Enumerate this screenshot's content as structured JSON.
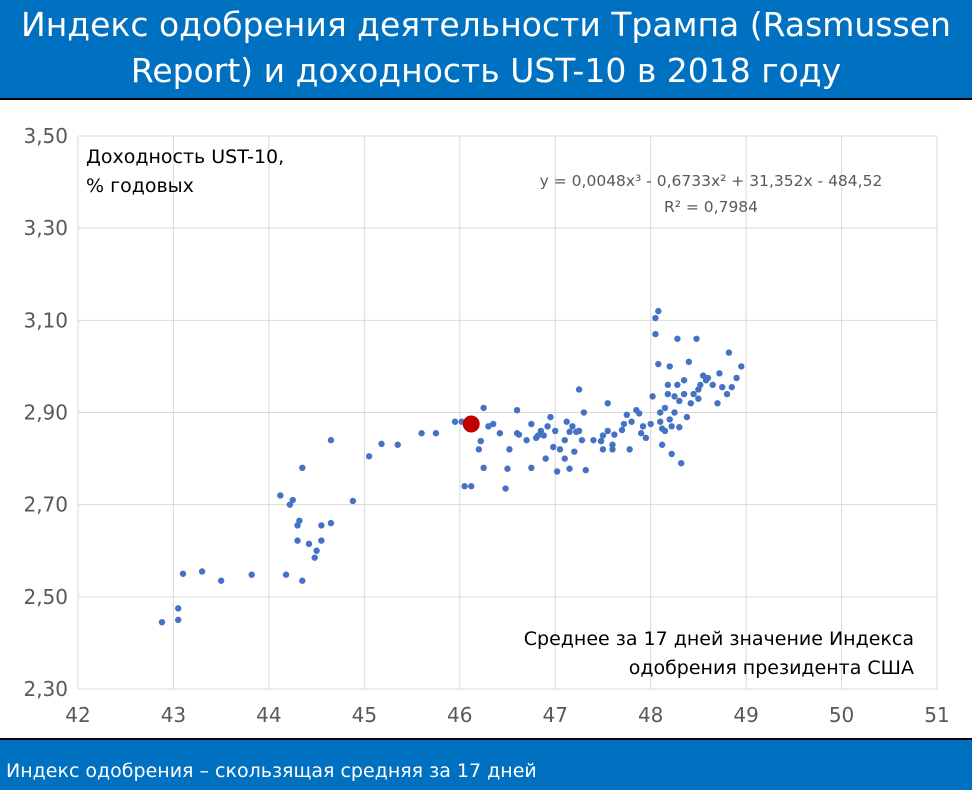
{
  "title_lines": [
    "Индекс одобрения деятельности Трампа (Rasmussen",
    "Report) и доходность UST-10 в 2018 году"
  ],
  "footer": "Индекс одобрения – скользящая средняя за 17 дней",
  "colors": {
    "background_band": "#0070c0",
    "points": "#4472c4",
    "highlight": "#c00000",
    "trend": "#c00000",
    "grid": "#d9d9d9"
  },
  "chart_data": {
    "type": "scatter",
    "ylabel": "Доходность UST-10, % годовых",
    "xlabel": "Среднее за 17 дней значение Индекса одобрения президента США",
    "ylabel_lines": [
      "Доходность UST-10,",
      "% годовых"
    ],
    "xlabel_lines": [
      "Среднее за 17 дней значение Индекса",
      "одобрения президента США"
    ],
    "xlim": [
      42,
      51
    ],
    "ylim": [
      2.3,
      3.5
    ],
    "x_ticks": [
      "42",
      "43",
      "44",
      "45",
      "46",
      "47",
      "48",
      "49",
      "50",
      "51"
    ],
    "y_ticks": [
      "2,30",
      "2,50",
      "2,70",
      "2,90",
      "3,10",
      "3,30",
      "3,50"
    ],
    "grid": true,
    "trendline": {
      "type": "polynomial",
      "coefficients": [
        0.0048,
        -0.6733,
        31.352,
        -484.52
      ],
      "equation": "y = 0,0048x³ - 0,6733x² + 31,352x - 484,52",
      "r2": "R² = 0,7984"
    },
    "highlight_point": {
      "x": 46.12,
      "y": 2.875
    },
    "points": [
      [
        42.88,
        2.445
      ],
      [
        43.05,
        2.475
      ],
      [
        43.05,
        2.45
      ],
      [
        43.1,
        2.55
      ],
      [
        43.3,
        2.555
      ],
      [
        43.5,
        2.535
      ],
      [
        43.82,
        2.548
      ],
      [
        44.12,
        2.72
      ],
      [
        44.18,
        2.548
      ],
      [
        44.22,
        2.7
      ],
      [
        44.25,
        2.71
      ],
      [
        44.3,
        2.655
      ],
      [
        44.3,
        2.622
      ],
      [
        44.32,
        2.665
      ],
      [
        44.35,
        2.78
      ],
      [
        44.35,
        2.535
      ],
      [
        44.42,
        2.615
      ],
      [
        44.48,
        2.585
      ],
      [
        44.5,
        2.6
      ],
      [
        44.55,
        2.622
      ],
      [
        44.55,
        2.655
      ],
      [
        44.65,
        2.66
      ],
      [
        44.65,
        2.84
      ],
      [
        44.88,
        2.708
      ],
      [
        45.05,
        2.805
      ],
      [
        45.18,
        2.832
      ],
      [
        45.35,
        2.83
      ],
      [
        45.6,
        2.855
      ],
      [
        45.75,
        2.855
      ],
      [
        45.95,
        2.88
      ],
      [
        46.02,
        2.88
      ],
      [
        46.05,
        2.74
      ],
      [
        46.12,
        2.74
      ],
      [
        46.2,
        2.82
      ],
      [
        46.22,
        2.838
      ],
      [
        46.25,
        2.91
      ],
      [
        46.25,
        2.78
      ],
      [
        46.3,
        2.87
      ],
      [
        46.35,
        2.875
      ],
      [
        46.42,
        2.855
      ],
      [
        46.48,
        2.735
      ],
      [
        46.5,
        2.778
      ],
      [
        46.52,
        2.82
      ],
      [
        46.6,
        2.905
      ],
      [
        46.6,
        2.855
      ],
      [
        46.62,
        2.852
      ],
      [
        46.7,
        2.84
      ],
      [
        46.75,
        2.875
      ],
      [
        46.75,
        2.78
      ],
      [
        46.8,
        2.845
      ],
      [
        46.82,
        2.85
      ],
      [
        46.85,
        2.86
      ],
      [
        46.88,
        2.85
      ],
      [
        46.9,
        2.8
      ],
      [
        46.92,
        2.87
      ],
      [
        46.95,
        2.89
      ],
      [
        46.98,
        2.825
      ],
      [
        47.0,
        2.86
      ],
      [
        47.02,
        2.772
      ],
      [
        47.05,
        2.82
      ],
      [
        47.1,
        2.8
      ],
      [
        47.1,
        2.84
      ],
      [
        47.12,
        2.88
      ],
      [
        47.15,
        2.858
      ],
      [
        47.15,
        2.778
      ],
      [
        47.18,
        2.87
      ],
      [
        47.2,
        2.815
      ],
      [
        47.22,
        2.858
      ],
      [
        47.25,
        2.86
      ],
      [
        47.25,
        2.95
      ],
      [
        47.28,
        2.84
      ],
      [
        47.3,
        2.9
      ],
      [
        47.32,
        2.775
      ],
      [
        47.4,
        2.84
      ],
      [
        47.48,
        2.838
      ],
      [
        47.5,
        2.85
      ],
      [
        47.5,
        2.82
      ],
      [
        47.55,
        2.86
      ],
      [
        47.55,
        2.92
      ],
      [
        47.6,
        2.83
      ],
      [
        47.6,
        2.82
      ],
      [
        47.62,
        2.852
      ],
      [
        47.7,
        2.862
      ],
      [
        47.72,
        2.875
      ],
      [
        47.75,
        2.895
      ],
      [
        47.78,
        2.82
      ],
      [
        47.8,
        2.88
      ],
      [
        47.85,
        2.905
      ],
      [
        47.88,
        2.898
      ],
      [
        47.9,
        2.855
      ],
      [
        47.92,
        2.87
      ],
      [
        47.95,
        2.845
      ],
      [
        48.0,
        2.875
      ],
      [
        48.02,
        2.935
      ],
      [
        48.05,
        3.105
      ],
      [
        48.08,
        3.12
      ],
      [
        48.05,
        3.07
      ],
      [
        48.08,
        3.005
      ],
      [
        48.1,
        2.9
      ],
      [
        48.1,
        2.88
      ],
      [
        48.12,
        2.865
      ],
      [
        48.12,
        2.83
      ],
      [
        48.15,
        2.91
      ],
      [
        48.15,
        2.86
      ],
      [
        48.18,
        2.96
      ],
      [
        48.18,
        2.94
      ],
      [
        48.2,
        3.0
      ],
      [
        48.2,
        2.885
      ],
      [
        48.22,
        2.81
      ],
      [
        48.22,
        2.87
      ],
      [
        48.25,
        2.935
      ],
      [
        48.25,
        2.9
      ],
      [
        48.28,
        3.06
      ],
      [
        48.28,
        2.96
      ],
      [
        48.3,
        2.925
      ],
      [
        48.3,
        2.868
      ],
      [
        48.32,
        2.79
      ],
      [
        48.35,
        2.97
      ],
      [
        48.35,
        2.94
      ],
      [
        48.38,
        2.89
      ],
      [
        48.4,
        3.01
      ],
      [
        48.42,
        2.92
      ],
      [
        48.45,
        2.94
      ],
      [
        48.48,
        3.06
      ],
      [
        48.5,
        2.95
      ],
      [
        48.5,
        2.93
      ],
      [
        48.52,
        2.96
      ],
      [
        48.55,
        2.98
      ],
      [
        48.58,
        2.97
      ],
      [
        48.6,
        2.975
      ],
      [
        48.65,
        2.96
      ],
      [
        48.7,
        2.92
      ],
      [
        48.72,
        2.985
      ],
      [
        48.75,
        2.955
      ],
      [
        48.8,
        2.94
      ],
      [
        48.82,
        3.03
      ],
      [
        48.85,
        2.955
      ],
      [
        48.9,
        2.975
      ],
      [
        48.95,
        3.0
      ]
    ]
  }
}
